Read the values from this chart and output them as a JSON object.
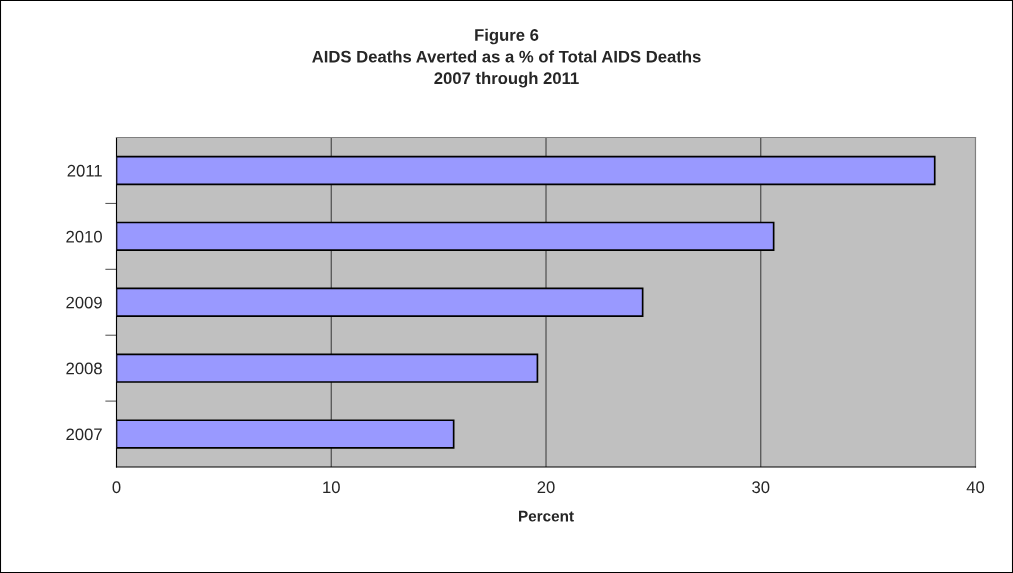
{
  "chart_data": {
    "type": "bar",
    "orientation": "horizontal",
    "title": "Figure 6\nAIDS Deaths Averted as a % of Total AIDS Deaths\n2007 through 2011",
    "xlabel": "Percent",
    "categories": [
      "2011",
      "2010",
      "2009",
      "2008",
      "2007"
    ],
    "values": [
      38.1,
      30.6,
      24.5,
      19.6,
      15.7
    ],
    "color": "#9999ff",
    "xlim": [
      0,
      40
    ],
    "xticks": [
      0,
      10,
      20,
      30,
      40
    ],
    "grid": "x",
    "legend": false
  }
}
